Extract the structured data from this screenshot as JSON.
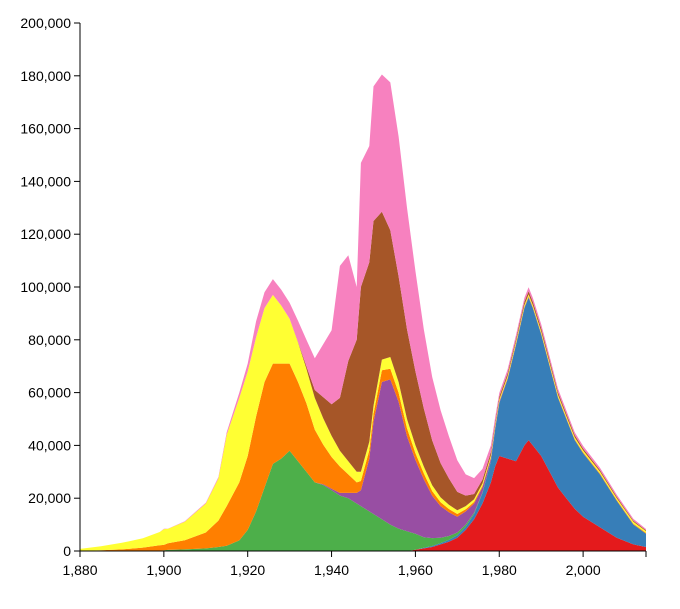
{
  "chart_data": {
    "type": "area",
    "stacked": true,
    "title": "",
    "xlabel": "",
    "ylabel": "",
    "xlim": [
      1880,
      2015
    ],
    "ylim": [
      0,
      200000
    ],
    "grid": false,
    "legend": "none",
    "x_ticks": [
      1880,
      1900,
      1920,
      1940,
      1960,
      1980,
      2000
    ],
    "x_tick_labels": [
      "1,880",
      "1,900",
      "1,920",
      "1,940",
      "1,960",
      "1,980",
      "2,000"
    ],
    "y_ticks": [
      0,
      20000,
      40000,
      60000,
      80000,
      100000,
      120000,
      140000,
      160000,
      180000,
      200000
    ],
    "y_tick_labels": [
      "0",
      "20,000",
      "40,000",
      "60,000",
      "80,000",
      "100,000",
      "120,000",
      "140,000",
      "160,000",
      "180,000",
      "200,000"
    ],
    "x": [
      1880,
      1885,
      1890,
      1895,
      1899,
      1900,
      1901,
      1905,
      1910,
      1913,
      1915,
      1918,
      1920,
      1922,
      1924,
      1926,
      1928,
      1930,
      1932,
      1934,
      1936,
      1938,
      1940,
      1942,
      1944,
      1946,
      1947,
      1949,
      1950,
      1952,
      1954,
      1956,
      1958,
      1960,
      1962,
      1964,
      1966,
      1968,
      1970,
      1972,
      1974,
      1976,
      1978,
      1979,
      1980,
      1982,
      1984,
      1986,
      1987,
      1988,
      1990,
      1992,
      1994,
      1996,
      1998,
      2000,
      2004,
      2008,
      2012,
      2015
    ],
    "series": [
      {
        "name": "red",
        "color": "#e41a1c",
        "values": [
          0,
          0,
          0,
          0,
          0,
          0,
          0,
          0,
          0,
          0,
          0,
          0,
          0,
          0,
          0,
          0,
          0,
          0,
          0,
          0,
          0,
          0,
          0,
          0,
          0,
          0,
          0,
          0,
          0,
          0,
          0,
          0,
          0,
          500,
          1000,
          1500,
          2500,
          3500,
          5000,
          8000,
          12000,
          18000,
          26000,
          32000,
          36000,
          35000,
          34000,
          40000,
          42000,
          40000,
          36000,
          30000,
          24000,
          20000,
          16000,
          13000,
          9000,
          5000,
          2500,
          1500
        ]
      },
      {
        "name": "blue",
        "color": "#377eb8",
        "values": [
          0,
          0,
          0,
          0,
          0,
          0,
          0,
          0,
          0,
          0,
          0,
          0,
          0,
          0,
          0,
          0,
          0,
          0,
          0,
          0,
          0,
          0,
          0,
          0,
          0,
          0,
          0,
          0,
          0,
          0,
          0,
          0,
          0,
          0,
          200,
          400,
          500,
          700,
          1000,
          1200,
          2000,
          4000,
          8000,
          14000,
          20000,
          30000,
          44000,
          52000,
          54000,
          52000,
          46000,
          40000,
          34000,
          30000,
          26000,
          24000,
          20000,
          14000,
          7500,
          5000
        ]
      },
      {
        "name": "green",
        "color": "#4daf4a",
        "values": [
          0,
          0,
          0,
          100,
          200,
          300,
          400,
          600,
          1000,
          1500,
          2000,
          4000,
          8000,
          15000,
          24000,
          33000,
          35000,
          38000,
          34000,
          30000,
          26000,
          25000,
          23000,
          21000,
          20000,
          18000,
          17000,
          15000,
          14000,
          12000,
          10000,
          8500,
          7500,
          6000,
          4000,
          3000,
          2000,
          1500,
          1000,
          800,
          500,
          200,
          100,
          0,
          0,
          0,
          0,
          0,
          0,
          0,
          0,
          0,
          0,
          0,
          0,
          0,
          0,
          0,
          0,
          0
        ]
      },
      {
        "name": "purple",
        "color": "#984ea3",
        "values": [
          0,
          0,
          0,
          0,
          0,
          0,
          0,
          0,
          0,
          0,
          0,
          0,
          0,
          0,
          0,
          0,
          0,
          0,
          0,
          0,
          0,
          300,
          600,
          1000,
          2000,
          4000,
          6000,
          20000,
          35000,
          52000,
          55000,
          48000,
          36000,
          28000,
          22000,
          16000,
          12000,
          9000,
          6000,
          5000,
          3500,
          2000,
          1000,
          500,
          400,
          300,
          300,
          200,
          200,
          200,
          200,
          200,
          150,
          150,
          100,
          100,
          100,
          50,
          50,
          50
        ]
      },
      {
        "name": "orange",
        "color": "#ff7f00",
        "values": [
          0,
          300,
          600,
          1200,
          2000,
          2000,
          2500,
          3500,
          6000,
          10000,
          15000,
          22000,
          28000,
          36000,
          40000,
          38000,
          36000,
          33000,
          30000,
          26000,
          20000,
          15000,
          12000,
          10000,
          7000,
          4000,
          3500,
          3200,
          3000,
          4500,
          4000,
          3500,
          3000,
          2600,
          2200,
          1800,
          1500,
          1200,
          1000,
          800,
          600,
          500,
          400,
          300,
          300,
          300,
          300,
          300,
          300,
          300,
          300,
          300,
          300,
          300,
          300,
          300,
          300,
          300,
          300,
          300
        ]
      },
      {
        "name": "yellow",
        "color": "#ffff33",
        "values": [
          800,
          1500,
          2500,
          3500,
          5000,
          6000,
          5500,
          7000,
          11000,
          16000,
          27000,
          32000,
          32000,
          30000,
          28000,
          26000,
          22000,
          17000,
          15000,
          13000,
          12000,
          10000,
          8000,
          6000,
          5000,
          4000,
          3500,
          3200,
          3000,
          4000,
          4500,
          4000,
          3500,
          3000,
          2600,
          2200,
          1800,
          1600,
          1400,
          1200,
          1000,
          900,
          800,
          700,
          700,
          700,
          700,
          700,
          700,
          700,
          700,
          700,
          700,
          700,
          700,
          700,
          700,
          700,
          700,
          700
        ]
      },
      {
        "name": "brown",
        "color": "#a65628",
        "values": [
          0,
          0,
          0,
          0,
          0,
          0,
          0,
          0,
          0,
          0,
          0,
          0,
          0,
          0,
          0,
          0,
          0,
          0,
          200,
          1000,
          3000,
          8000,
          12000,
          20000,
          38000,
          50000,
          70000,
          68000,
          70000,
          56000,
          48000,
          40000,
          34000,
          28000,
          22000,
          17000,
          13000,
          10000,
          7000,
          4000,
          2000,
          1500,
          1200,
          1000,
          1000,
          1000,
          1000,
          1200,
          1200,
          1200,
          1200,
          1100,
          1000,
          900,
          800,
          700,
          600,
          500,
          400,
          300
        ]
      },
      {
        "name": "pink",
        "color": "#f781bf",
        "values": [
          0,
          0,
          0,
          0,
          0,
          100,
          100,
          200,
          300,
          500,
          1000,
          2000,
          3000,
          6000,
          6000,
          6000,
          6000,
          6000,
          8000,
          10000,
          12000,
          20000,
          28000,
          50000,
          40000,
          20000,
          47000,
          44000,
          51000,
          52000,
          56000,
          53000,
          46000,
          38000,
          30000,
          24000,
          20000,
          16000,
          12000,
          8000,
          6000,
          4000,
          2500,
          2000,
          1500,
          1500,
          1500,
          1500,
          1500,
          1500,
          1500,
          1400,
          1300,
          1200,
          1100,
          1000,
          900,
          800,
          700,
          500
        ]
      }
    ]
  },
  "axes": {
    "x_tick_labels": [
      "1,880",
      "1,900",
      "1,920",
      "1,940",
      "1,960",
      "1,980",
      "2,000"
    ],
    "y_tick_labels": [
      "0",
      "20,000",
      "40,000",
      "60,000",
      "80,000",
      "100,000",
      "120,000",
      "140,000",
      "160,000",
      "180,000",
      "200,000"
    ]
  }
}
